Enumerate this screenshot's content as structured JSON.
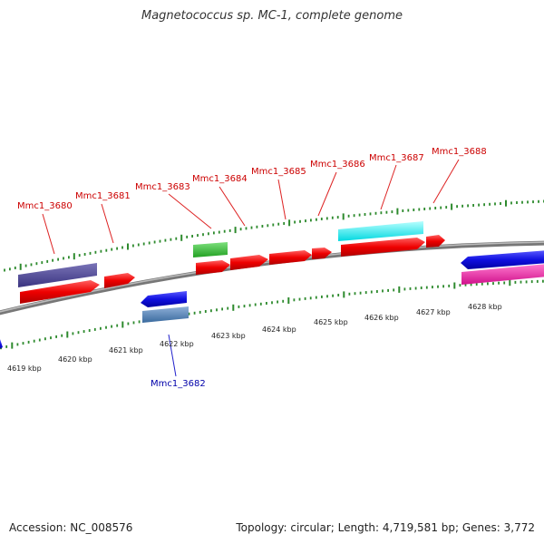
{
  "title": "Magnetococcus sp. MC-1, complete genome",
  "accession": "Accession: NC_008576",
  "summary": "Topology: circular; Length: 4,719,581 bp; Genes: 3,772",
  "colors": {
    "label_forward": "#cc0000",
    "label_reverse": "#0000aa",
    "backbone": "#888888",
    "ticks": "#2d8a2d"
  },
  "scale_labels": [
    "4619 kbp",
    "4620 kbp",
    "4621 kbp",
    "4622 kbp",
    "4623 kbp",
    "4624 kbp",
    "4625 kbp",
    "4626 kbp",
    "4627 kbp",
    "4628 kbp"
  ],
  "gene_labels": [
    {
      "text": "Mmc1_3680",
      "strand": "forward"
    },
    {
      "text": "Mmc1_3681",
      "strand": "forward"
    },
    {
      "text": "Mmc1_3682",
      "strand": "reverse"
    },
    {
      "text": "Mmc1_3683",
      "strand": "forward"
    },
    {
      "text": "Mmc1_3684",
      "strand": "forward"
    },
    {
      "text": "Mmc1_3685",
      "strand": "forward"
    },
    {
      "text": "Mmc1_3686",
      "strand": "forward"
    },
    {
      "text": "Mmc1_3687",
      "strand": "forward"
    },
    {
      "text": "Mmc1_3688",
      "strand": "forward"
    }
  ]
}
